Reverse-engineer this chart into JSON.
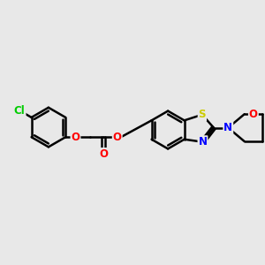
{
  "background_color": "#E8E8E8",
  "bond_color": "#000000",
  "bond_width": 1.8,
  "atom_colors": {
    "Cl": "#00CC00",
    "O": "#FF0000",
    "S": "#CCCC00",
    "N": "#0000FF",
    "C": "#000000"
  },
  "font_size": 8.5,
  "fig_bg": "#E8E8E8"
}
